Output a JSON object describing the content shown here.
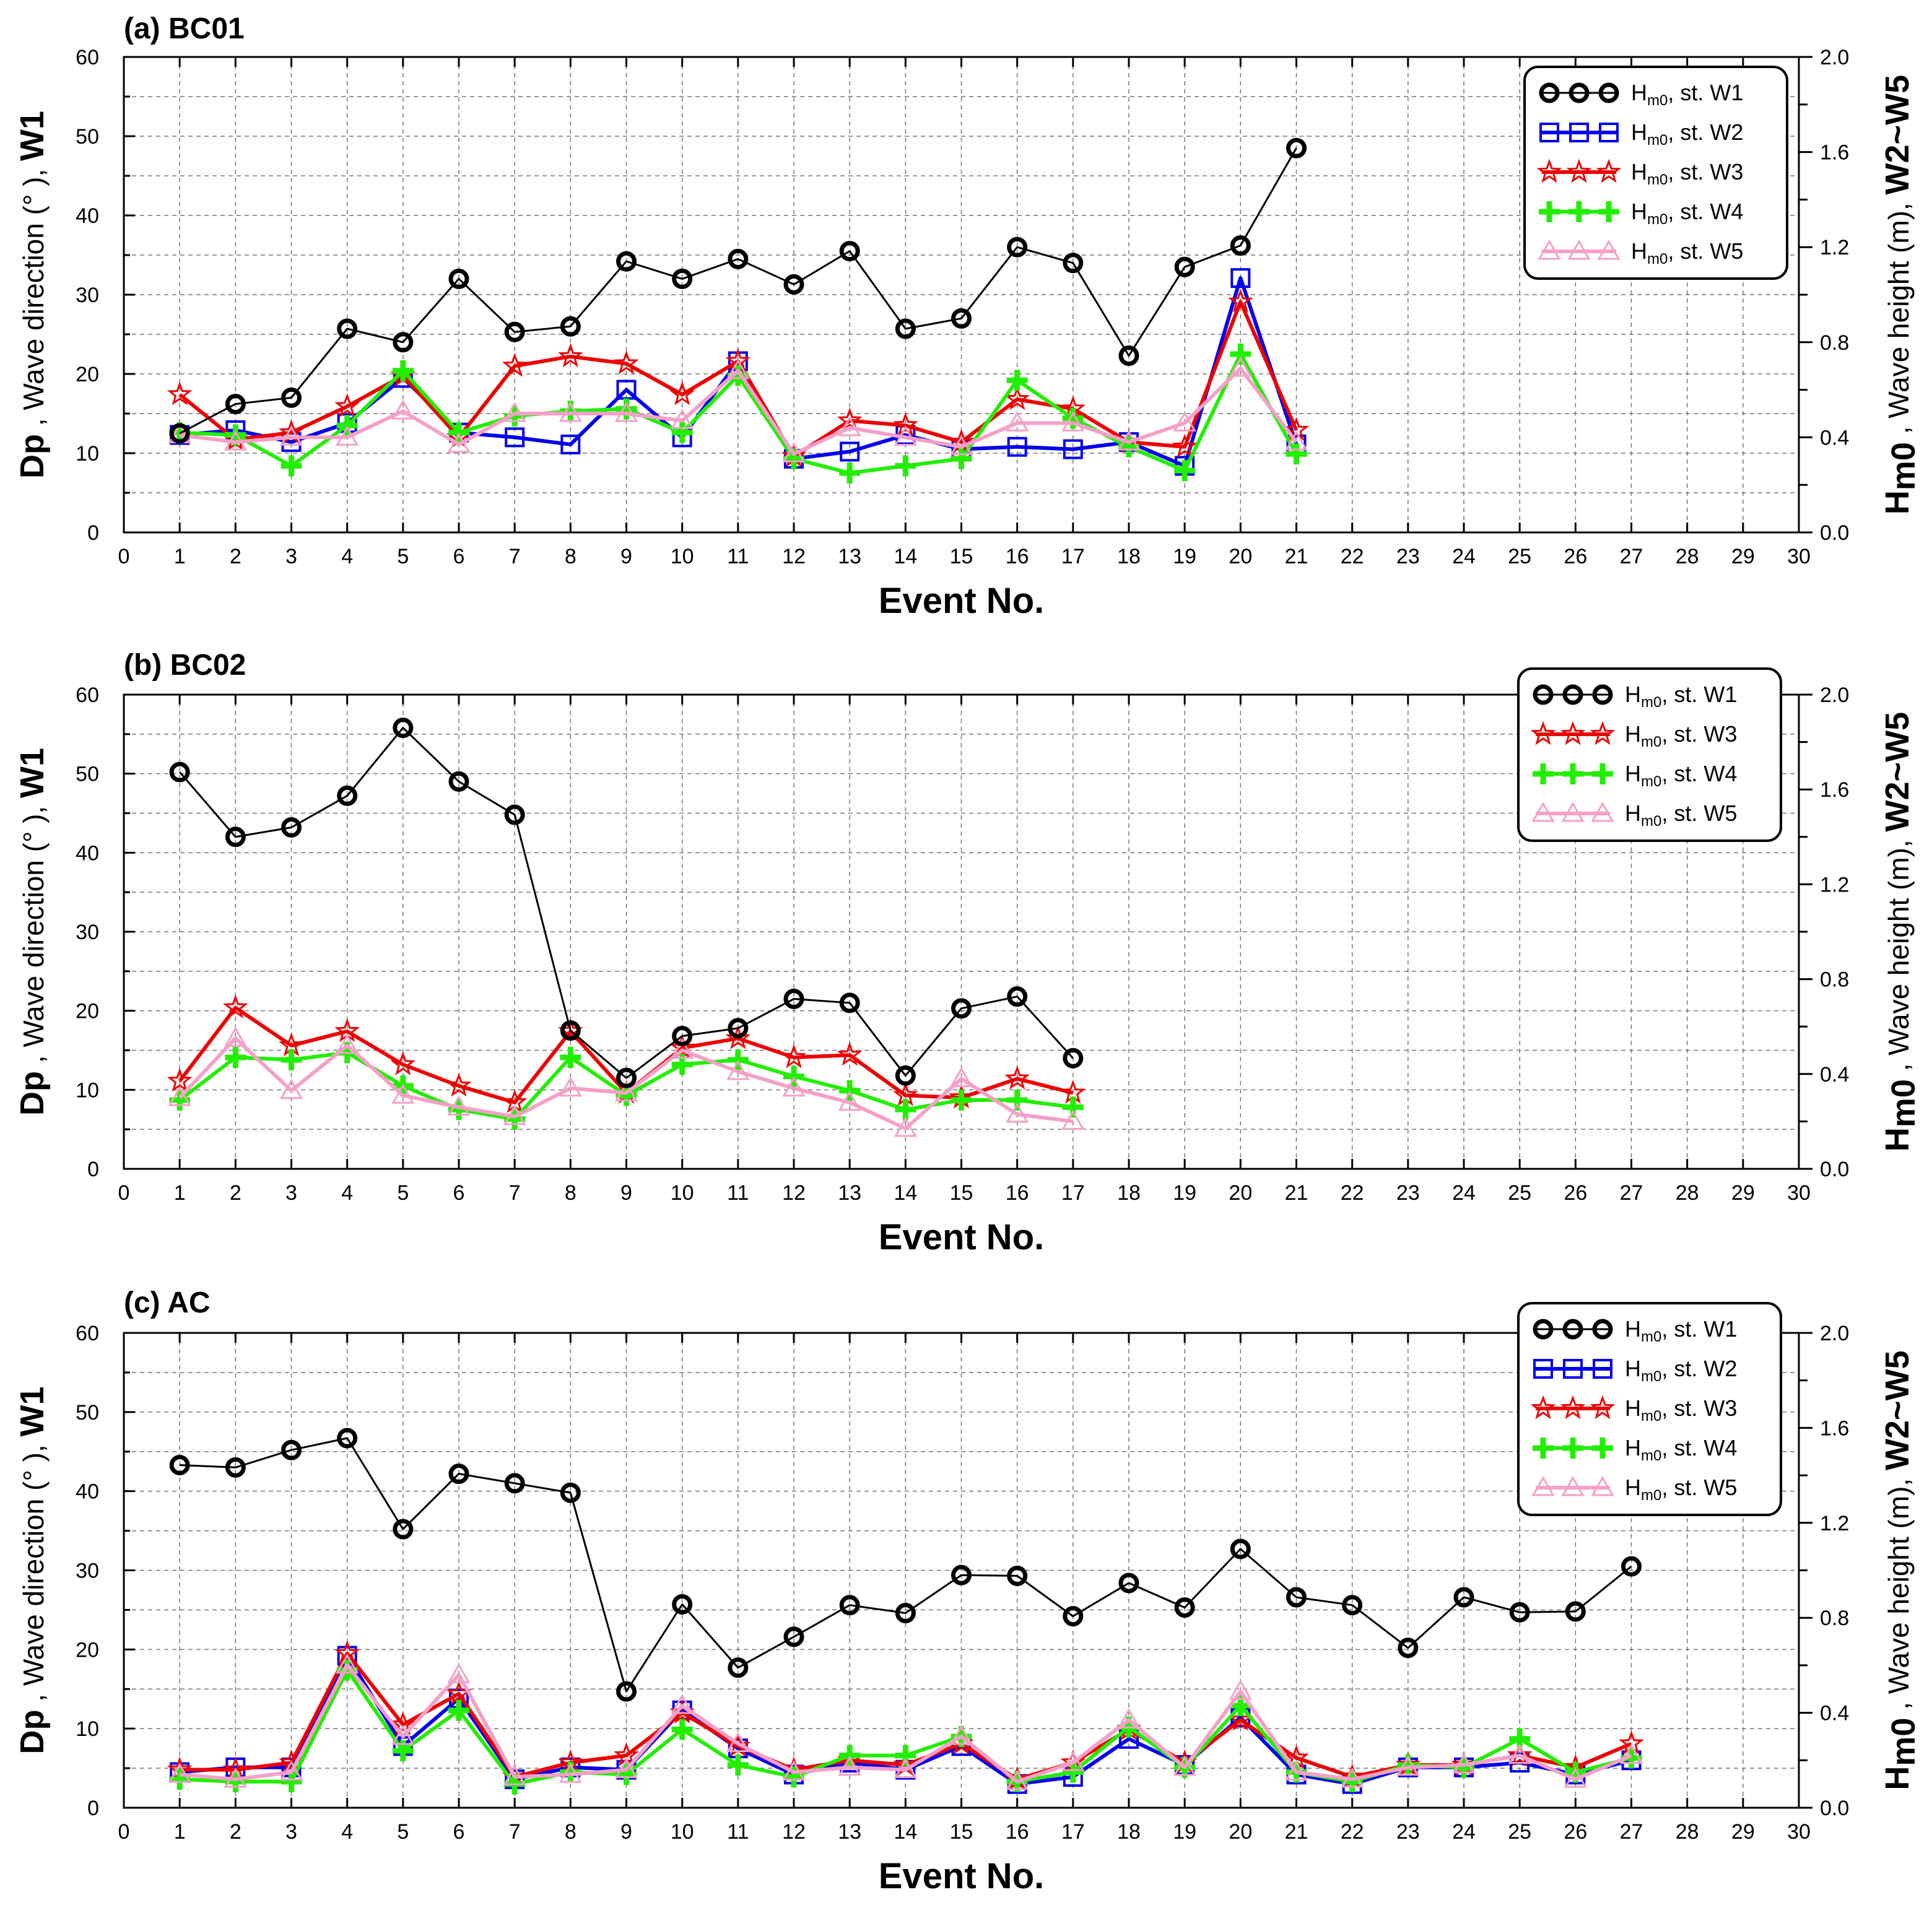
{
  "chart_data": [
    {
      "type": "line",
      "title": "(a) BC01",
      "xlabel": "Event No.",
      "ylabel_left": {
        "prefix": "Dp",
        "text": " , Wave direction (° ), ",
        "bold_suffix": "W1"
      },
      "ylabel_right": {
        "prefix": "H",
        "sub": "m0",
        "text": " , Wave height (m), ",
        "bold_suffix": "W2~W5"
      },
      "xlim": [
        0,
        30
      ],
      "ylim_left": [
        0,
        60
      ],
      "ylim_right": [
        0.0,
        2.0
      ],
      "x_ticks": [
        "0",
        "1",
        "2",
        "3",
        "4",
        "5",
        "6",
        "7",
        "8",
        "9",
        "10",
        "11",
        "12",
        "13",
        "14",
        "15",
        "16",
        "17",
        "18",
        "19",
        "20",
        "21",
        "22",
        "23",
        "24",
        "25",
        "26",
        "27",
        "28",
        "29",
        "30"
      ],
      "y_left_ticks": [
        "0",
        "10",
        "20",
        "30",
        "40",
        "50",
        "60"
      ],
      "y_right_ticks": [
        "0.0",
        "0.4",
        "0.8",
        "1.2",
        "1.6",
        "2.0"
      ],
      "grid": true,
      "legend_position": "top-right",
      "series": [
        {
          "name": "Hm0, st. W1",
          "label_main": "H",
          "label_sub": "m0",
          "label_rest": ", st. W1",
          "axis": "left",
          "color": "#000000",
          "marker": "circle",
          "values": [
            12.5,
            16.2,
            17.0,
            25.7,
            24.0,
            32.0,
            25.3,
            26.0,
            34.2,
            32.0,
            34.5,
            31.3,
            35.5,
            25.7,
            27.0,
            36.0,
            34.0,
            22.3,
            33.5,
            36.2,
            48.5
          ]
        },
        {
          "name": "Hm0, st. W2",
          "label_main": "H",
          "label_sub": "m0",
          "label_rest": ", st. W2",
          "axis": "right",
          "color": "#0000ee",
          "marker": "square",
          "values": [
            0.41,
            0.43,
            0.38,
            0.46,
            0.65,
            0.42,
            0.4,
            0.37,
            0.6,
            0.4,
            0.72,
            0.31,
            0.34,
            0.41,
            0.35,
            0.36,
            0.35,
            0.38,
            0.28,
            1.07,
            0.37
          ]
        },
        {
          "name": "Hm0, st. W3",
          "label_main": "H",
          "label_sub": "m0",
          "label_rest": ", st. W3",
          "axis": "right",
          "color": "#ee0000",
          "marker": "star",
          "values": [
            0.58,
            0.39,
            0.42,
            0.53,
            0.66,
            0.4,
            0.7,
            0.74,
            0.71,
            0.58,
            0.72,
            0.32,
            0.47,
            0.45,
            0.38,
            0.56,
            0.52,
            0.38,
            0.36,
            0.97,
            0.43
          ]
        },
        {
          "name": "Hm0, st. W4",
          "label_main": "H",
          "label_sub": "m0",
          "label_rest": ", st. W4",
          "axis": "right",
          "color": "#22ee00",
          "marker": "plus",
          "values": [
            0.42,
            0.41,
            0.28,
            0.45,
            0.68,
            0.42,
            0.49,
            0.51,
            0.52,
            0.42,
            0.66,
            0.31,
            0.25,
            0.28,
            0.31,
            0.64,
            0.48,
            0.36,
            0.26,
            0.75,
            0.33
          ]
        },
        {
          "name": "Hm0, st. W5",
          "label_main": "H",
          "label_sub": "m0",
          "label_rest": ", st. W5",
          "axis": "right",
          "color": "#f5a0c8",
          "marker": "triangle",
          "values": [
            0.41,
            0.38,
            0.4,
            0.4,
            0.51,
            0.37,
            0.5,
            0.5,
            0.5,
            0.47,
            0.68,
            0.33,
            0.44,
            0.4,
            0.36,
            0.46,
            0.46,
            0.38,
            0.46,
            0.69,
            0.38
          ]
        }
      ]
    },
    {
      "type": "line",
      "title": "(b) BC02",
      "xlabel": "Event No.",
      "ylabel_left": {
        "prefix": "Dp",
        "text": " , Wave direction (° ), ",
        "bold_suffix": "W1"
      },
      "ylabel_right": {
        "prefix": "H",
        "sub": "m0",
        "text": " , Wave height (m), ",
        "bold_suffix": "W2~W5"
      },
      "xlim": [
        0,
        30
      ],
      "ylim_left": [
        0,
        60
      ],
      "ylim_right": [
        0.0,
        2.0
      ],
      "x_ticks": [
        "0",
        "1",
        "2",
        "3",
        "4",
        "5",
        "6",
        "7",
        "8",
        "9",
        "10",
        "11",
        "12",
        "13",
        "14",
        "15",
        "16",
        "17",
        "18",
        "19",
        "20",
        "21",
        "22",
        "23",
        "24",
        "25",
        "26",
        "27",
        "28",
        "29",
        "30"
      ],
      "y_left_ticks": [
        "0",
        "10",
        "20",
        "30",
        "40",
        "50",
        "60"
      ],
      "y_right_ticks": [
        "0.0",
        "0.4",
        "0.8",
        "1.2",
        "1.6",
        "2.0"
      ],
      "grid": true,
      "legend_position": "top-right",
      "series": [
        {
          "name": "Hm0, st. W1",
          "label_main": "H",
          "label_sub": "m0",
          "label_rest": ", st. W1",
          "axis": "left",
          "color": "#000000",
          "marker": "circle",
          "values": [
            50.2,
            42.0,
            43.2,
            47.2,
            55.8,
            49.0,
            44.8,
            17.5,
            11.5,
            16.8,
            17.8,
            21.5,
            21.0,
            11.8,
            20.3,
            21.8,
            14.0
          ]
        },
        {
          "name": "Hm0, st. W3",
          "label_main": "H",
          "label_sub": "m0",
          "label_rest": ", st. W3",
          "axis": "right",
          "color": "#ee0000",
          "marker": "star",
          "values": [
            0.37,
            0.68,
            0.52,
            0.58,
            0.44,
            0.35,
            0.28,
            0.58,
            0.32,
            0.51,
            0.55,
            0.47,
            0.48,
            0.31,
            0.3,
            0.38,
            0.32
          ]
        },
        {
          "name": "Hm0, st. W4",
          "label_main": "H",
          "label_sub": "m0",
          "label_rest": ", st. W4",
          "axis": "right",
          "color": "#22ee00",
          "marker": "plus",
          "values": [
            0.29,
            0.47,
            0.46,
            0.49,
            0.35,
            0.25,
            0.21,
            0.47,
            0.31,
            0.44,
            0.46,
            0.39,
            0.33,
            0.25,
            0.29,
            0.29,
            0.26
          ]
        },
        {
          "name": "Hm0, st. W5",
          "label_main": "H",
          "label_sub": "m0",
          "label_rest": ", st. W5",
          "axis": "right",
          "color": "#f5a0c8",
          "marker": "triangle",
          "values": [
            0.3,
            0.55,
            0.33,
            0.52,
            0.31,
            0.26,
            0.22,
            0.34,
            0.32,
            0.5,
            0.41,
            0.34,
            0.28,
            0.17,
            0.38,
            0.23,
            0.2
          ]
        }
      ]
    },
    {
      "type": "line",
      "title": "(c) AC",
      "xlabel": "Event No.",
      "ylabel_left": {
        "prefix": "Dp",
        "text": " , Wave direction (° ), ",
        "bold_suffix": "W1"
      },
      "ylabel_right": {
        "prefix": "H",
        "sub": "m0",
        "text": " , Wave height (m), ",
        "bold_suffix": "W2~W5"
      },
      "xlim": [
        0,
        30
      ],
      "ylim_left": [
        0,
        60
      ],
      "ylim_right": [
        0.0,
        2.0
      ],
      "x_ticks": [
        "0",
        "1",
        "2",
        "3",
        "4",
        "5",
        "6",
        "7",
        "8",
        "9",
        "10",
        "11",
        "12",
        "13",
        "14",
        "15",
        "16",
        "17",
        "18",
        "19",
        "20",
        "21",
        "22",
        "23",
        "24",
        "25",
        "26",
        "27",
        "28",
        "29",
        "30"
      ],
      "y_left_ticks": [
        "0",
        "10",
        "20",
        "30",
        "40",
        "50",
        "60"
      ],
      "y_right_ticks": [
        "0.0",
        "0.4",
        "0.8",
        "1.2",
        "1.6",
        "2.0"
      ],
      "grid": true,
      "legend_position": "top-right",
      "series": [
        {
          "name": "Hm0, st. W1",
          "label_main": "H",
          "label_sub": "m0",
          "label_rest": ", st. W1",
          "axis": "left",
          "color": "#000000",
          "marker": "circle",
          "values": [
            43.3,
            43.0,
            45.2,
            46.7,
            35.2,
            42.2,
            41.0,
            39.8,
            14.7,
            25.7,
            17.7,
            21.6,
            25.6,
            24.6,
            29.4,
            29.3,
            24.2,
            28.4,
            25.3,
            32.7,
            26.6,
            25.6,
            20.2,
            26.6,
            24.7,
            24.8,
            30.5
          ]
        },
        {
          "name": "Hm0, st. W2",
          "label_main": "H",
          "label_sub": "m0",
          "label_rest": ", st. W2",
          "axis": "right",
          "color": "#0000ee",
          "marker": "square",
          "values": [
            0.15,
            0.17,
            0.17,
            0.64,
            0.26,
            0.46,
            0.12,
            0.17,
            0.16,
            0.41,
            0.25,
            0.14,
            0.19,
            0.16,
            0.26,
            0.1,
            0.13,
            0.29,
            0.18,
            0.38,
            0.14,
            0.1,
            0.17,
            0.17,
            0.19,
            0.14,
            0.2
          ]
        },
        {
          "name": "Hm0, st. W3",
          "label_main": "H",
          "label_sub": "m0",
          "label_rest": ", st. W3",
          "axis": "right",
          "color": "#ee0000",
          "marker": "star",
          "values": [
            0.16,
            0.16,
            0.19,
            0.65,
            0.35,
            0.48,
            0.13,
            0.19,
            0.22,
            0.4,
            0.26,
            0.16,
            0.2,
            0.18,
            0.27,
            0.12,
            0.19,
            0.33,
            0.19,
            0.37,
            0.21,
            0.13,
            0.18,
            0.18,
            0.22,
            0.17,
            0.27
          ]
        },
        {
          "name": "Hm0, st. W4",
          "label_main": "H",
          "label_sub": "m0",
          "label_rest": ", st. W4",
          "axis": "right",
          "color": "#22ee00",
          "marker": "plus",
          "values": [
            0.12,
            0.11,
            0.11,
            0.58,
            0.24,
            0.41,
            0.1,
            0.15,
            0.14,
            0.33,
            0.18,
            0.13,
            0.22,
            0.22,
            0.3,
            0.11,
            0.15,
            0.34,
            0.17,
            0.43,
            0.15,
            0.11,
            0.18,
            0.17,
            0.29,
            0.15,
            0.21
          ]
        },
        {
          "name": "Hm0, st. W5",
          "label_main": "H",
          "label_sub": "m0",
          "label_rest": ", st. W5",
          "axis": "right",
          "color": "#f5a0c8",
          "marker": "triangle",
          "values": [
            0.14,
            0.12,
            0.15,
            0.6,
            0.3,
            0.56,
            0.13,
            0.14,
            0.16,
            0.43,
            0.27,
            0.15,
            0.17,
            0.16,
            0.3,
            0.11,
            0.19,
            0.37,
            0.17,
            0.49,
            0.15,
            0.12,
            0.17,
            0.18,
            0.22,
            0.12,
            0.22
          ]
        }
      ]
    }
  ]
}
